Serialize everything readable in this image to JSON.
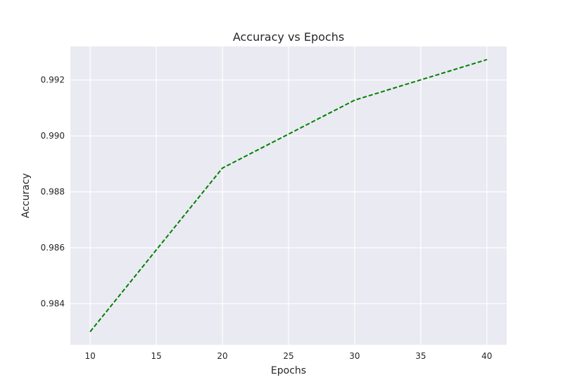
{
  "chart_data": {
    "type": "line",
    "title": "Accuracy vs Epochs",
    "xlabel": "Epochs",
    "ylabel": "Accuracy",
    "x": [
      10,
      20,
      30,
      40
    ],
    "series": [
      {
        "values": [
          0.983,
          0.98885,
          0.99128,
          0.99273
        ],
        "color": "#008000",
        "line_style": "dashed"
      }
    ],
    "xlim": [
      8.5,
      41.5
    ],
    "ylim": [
      0.98253,
      0.9932
    ],
    "xticks": [
      10,
      15,
      20,
      25,
      30,
      35,
      40
    ],
    "xtick_labels": [
      "10",
      "15",
      "20",
      "25",
      "30",
      "35",
      "40"
    ],
    "yticks": [
      0.984,
      0.986,
      0.988,
      0.99,
      0.992
    ],
    "ytick_labels": [
      "0.984",
      "0.986",
      "0.988",
      "0.990",
      "0.992"
    ],
    "grid": true,
    "background": "#eaeaf2"
  }
}
